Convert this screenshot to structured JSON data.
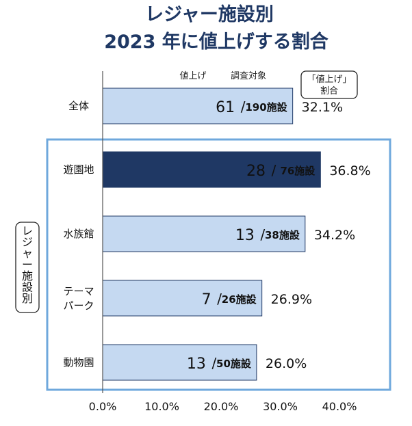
{
  "chart_data": {
    "type": "bar",
    "orientation": "horizontal",
    "title_line1": "レジャー施設別",
    "title_line2": "2023 年に値上げする割合",
    "column_headers": {
      "raised": "値上げ",
      "surveyed": "調査対象",
      "ratio_line1": "「値上げ」",
      "ratio_line2": "割合"
    },
    "group_label": "レジャー施設別",
    "categories": [
      {
        "label": "全体",
        "raised": 61,
        "total_label": "190施設",
        "percent": 32.1,
        "percent_label": "32.1%",
        "highlight": false,
        "grouped": false
      },
      {
        "label": "遊園地",
        "raised": 28,
        "total_label": "76施設",
        "percent": 36.8,
        "percent_label": "36.8%",
        "highlight": true,
        "grouped": true
      },
      {
        "label": "水族館",
        "raised": 13,
        "total_label": "38施設",
        "percent": 34.2,
        "percent_label": "34.2%",
        "highlight": false,
        "grouped": true
      },
      {
        "label": "テーマ\nパーク",
        "raised": 7,
        "total_label": "26施設",
        "percent": 26.9,
        "percent_label": "26.9%",
        "highlight": false,
        "grouped": true
      },
      {
        "label": "動物園",
        "raised": 13,
        "total_label": "50施設",
        "percent": 26.0,
        "percent_label": "26.0%",
        "highlight": false,
        "grouped": true
      }
    ],
    "x_ticks": [
      "0.0%",
      "10.0%",
      "20.0%",
      "30.0%",
      "40.0%"
    ],
    "xlim": [
      0,
      40
    ],
    "colors": {
      "bar": "#c5d9f1",
      "bar_border": "#1f3864",
      "highlight": "#1f3864",
      "group_box": "#6fa8dc",
      "title": "#1f3864"
    }
  }
}
